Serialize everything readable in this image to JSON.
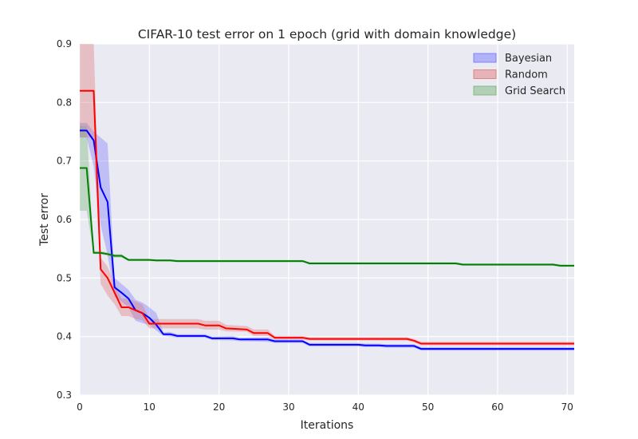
{
  "chart_data": {
    "type": "line",
    "title": "CIFAR-10 test error on 1 epoch (grid with domain knowledge)",
    "xlabel": "Iterations",
    "ylabel": "Test error",
    "xlim": [
      0,
      71
    ],
    "ylim": [
      0.3,
      0.9
    ],
    "xticks": [
      0,
      10,
      20,
      30,
      40,
      50,
      60,
      70
    ],
    "yticks": [
      0.3,
      0.4,
      0.5,
      0.6,
      0.7,
      0.8,
      0.9
    ],
    "grid": true,
    "legend_position": "top-right",
    "series": [
      {
        "name": "Bayesian",
        "color": "#0000ff",
        "band_color": "#6f6fff",
        "x": [
          0,
          1,
          2,
          3,
          4,
          5,
          6,
          7,
          8,
          9,
          10,
          11,
          12,
          13,
          14,
          18,
          19,
          22,
          23,
          27,
          28,
          32,
          33,
          40,
          41,
          43,
          44,
          48,
          49,
          71
        ],
        "y": [
          0.752,
          0.752,
          0.735,
          0.655,
          0.63,
          0.484,
          0.475,
          0.465,
          0.445,
          0.44,
          0.432,
          0.42,
          0.404,
          0.404,
          0.401,
          0.401,
          0.397,
          0.397,
          0.395,
          0.395,
          0.392,
          0.392,
          0.386,
          0.386,
          0.385,
          0.385,
          0.384,
          0.384,
          0.379,
          0.379
        ],
        "lower": [
          0.74,
          0.74,
          0.69,
          0.59,
          0.54,
          0.468,
          0.46,
          0.45,
          0.427,
          0.423,
          0.42,
          0.41,
          0.401,
          0.4,
          0.398,
          0.398,
          0.394,
          0.393,
          0.392,
          0.391,
          0.389,
          0.389,
          0.383,
          0.383,
          0.382,
          0.382,
          0.381,
          0.381,
          0.376,
          0.376
        ],
        "upper": [
          0.765,
          0.765,
          0.75,
          0.74,
          0.73,
          0.5,
          0.49,
          0.48,
          0.463,
          0.458,
          0.45,
          0.44,
          0.407,
          0.408,
          0.404,
          0.404,
          0.4,
          0.401,
          0.398,
          0.399,
          0.395,
          0.395,
          0.389,
          0.389,
          0.388,
          0.388,
          0.387,
          0.387,
          0.382,
          0.382
        ]
      },
      {
        "name": "Random",
        "color": "#ff0000",
        "band_color": "#e07070",
        "x": [
          0,
          1,
          2,
          3,
          4,
          5,
          6,
          7,
          8,
          9,
          10,
          11,
          12,
          17,
          18,
          20,
          21,
          24,
          25,
          27,
          28,
          32,
          33,
          47,
          48,
          49,
          71
        ],
        "y": [
          0.82,
          0.82,
          0.82,
          0.515,
          0.5,
          0.475,
          0.45,
          0.45,
          0.445,
          0.44,
          0.422,
          0.422,
          0.422,
          0.422,
          0.419,
          0.419,
          0.414,
          0.412,
          0.406,
          0.406,
          0.398,
          0.398,
          0.396,
          0.396,
          0.393,
          0.388,
          0.388
        ],
        "lower": [
          0.74,
          0.74,
          0.74,
          0.49,
          0.47,
          0.455,
          0.435,
          0.435,
          0.43,
          0.428,
          0.414,
          0.414,
          0.414,
          0.414,
          0.412,
          0.412,
          0.409,
          0.408,
          0.401,
          0.401,
          0.395,
          0.395,
          0.393,
          0.393,
          0.39,
          0.385,
          0.385
        ],
        "upper": [
          0.9,
          0.9,
          0.9,
          0.535,
          0.52,
          0.49,
          0.465,
          0.465,
          0.46,
          0.455,
          0.43,
          0.43,
          0.43,
          0.43,
          0.427,
          0.427,
          0.42,
          0.418,
          0.412,
          0.412,
          0.401,
          0.401,
          0.399,
          0.399,
          0.396,
          0.391,
          0.391
        ]
      },
      {
        "name": "Grid Search",
        "color": "#008000",
        "band_color": "#70b070",
        "x": [
          0,
          1,
          2,
          3,
          4,
          5,
          6,
          7,
          10,
          11,
          12,
          13,
          14,
          32,
          33,
          54,
          55,
          68,
          69,
          71
        ],
        "y": [
          0.688,
          0.688,
          0.543,
          0.543,
          0.541,
          0.538,
          0.538,
          0.531,
          0.531,
          0.53,
          0.53,
          0.53,
          0.529,
          0.529,
          0.525,
          0.525,
          0.523,
          0.523,
          0.521,
          0.521
        ],
        "lower": [
          0.615,
          0.615,
          0.541,
          0.541,
          0.538,
          0.535,
          0.535,
          0.529,
          0.529,
          0.528,
          0.528,
          0.528,
          0.527,
          0.527,
          0.523,
          0.523,
          0.521,
          0.521,
          0.519,
          0.519
        ],
        "upper": [
          0.76,
          0.76,
          0.546,
          0.546,
          0.544,
          0.541,
          0.541,
          0.533,
          0.533,
          0.532,
          0.532,
          0.532,
          0.531,
          0.531,
          0.527,
          0.527,
          0.525,
          0.525,
          0.523,
          0.523
        ]
      }
    ]
  }
}
